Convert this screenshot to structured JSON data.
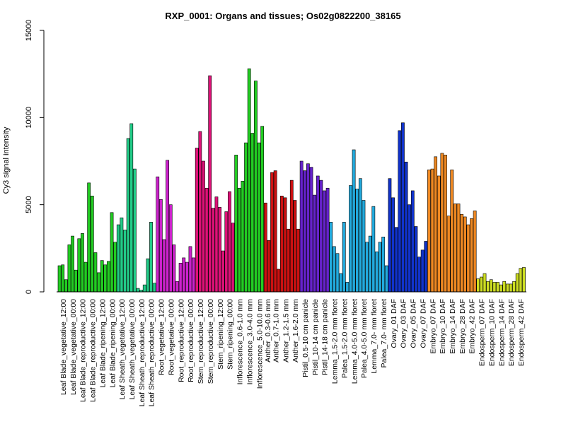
{
  "chart_data": {
    "type": "bar",
    "title": "RXP_0001: Organs and tissues; Os02g0822200_38165",
    "xlabel": "",
    "ylabel": "Cy3 signal intensity",
    "ylim": [
      0,
      15000
    ],
    "yticks": [
      0,
      5000,
      10000,
      15000
    ],
    "grid": false,
    "legend": "none",
    "groups": [
      {
        "label": "Leaf Blade_vegetative_12:00",
        "color": "#22cc22",
        "values": [
          1500,
          1550,
          700
        ]
      },
      {
        "label": "Leaf Blade_vegetative_00:00",
        "color": "#22cc22",
        "values": [
          2700,
          3200,
          1250
        ]
      },
      {
        "label": "Leaf Blade_reproductive_12:00",
        "color": "#22cc22",
        "values": [
          3050,
          3350,
          1700
        ]
      },
      {
        "label": "Leaf Blade_reproductive_00:00",
        "color": "#22cc22",
        "values": [
          6250,
          5500,
          2250
        ]
      },
      {
        "label": "Leaf Blade_ripening_12:00",
        "color": "#22cc22",
        "values": [
          1100,
          1800,
          1550
        ]
      },
      {
        "label": "Leaf Blade_ripening_00:00",
        "color": "#22cc22",
        "values": [
          1750,
          4550,
          2850
        ]
      },
      {
        "label": "Leaf Sheath_vegetative_12:00",
        "color": "#22cc88",
        "values": [
          3850,
          4250,
          3550
        ]
      },
      {
        "label": "Leaf Sheath_vegetative_00:00",
        "color": "#22cc88",
        "values": [
          8800,
          9650,
          7050
        ]
      },
      {
        "label": "Leaf Sheath_reproductive_12:00",
        "color": "#22cc88",
        "values": [
          200,
          100,
          400
        ]
      },
      {
        "label": "Leaf Sheath_reproductive_00:00",
        "color": "#22cc88",
        "values": [
          1900,
          4000,
          500
        ]
      },
      {
        "label": "Root_vegetative_12:00",
        "color": "#cc22cc",
        "values": [
          6600,
          5300,
          3000
        ]
      },
      {
        "label": "Root_vegetative_00:00",
        "color": "#cc22cc",
        "values": [
          7550,
          5000,
          2700
        ]
      },
      {
        "label": "Root_reproductive_12:00",
        "color": "#cc22cc",
        "values": [
          600,
          1650,
          1950
        ]
      },
      {
        "label": "Root_reproductive_00:00",
        "color": "#cc22cc",
        "values": [
          1700,
          2600,
          1950
        ]
      },
      {
        "label": "Stem_reproductive_12:00",
        "color": "#dd1177",
        "values": [
          8250,
          9200,
          7500
        ]
      },
      {
        "label": "Stem_reproductive_00:00",
        "color": "#dd1177",
        "values": [
          5950,
          12400,
          4800
        ]
      },
      {
        "label": "Stem_ripening_12:00",
        "color": "#dd1177",
        "values": [
          5450,
          4850,
          2350
        ]
      },
      {
        "label": "Stem_ripening_00:00",
        "color": "#dd1177",
        "values": [
          4600,
          5750,
          3950
        ]
      },
      {
        "label": "Inflorescence_0.6-1.0 mm",
        "color": "#22cc22",
        "values": [
          7850,
          5950,
          6350
        ]
      },
      {
        "label": "Inflorescence_3.0-4.0 mm",
        "color": "#22cc22",
        "values": [
          8550,
          12800,
          9100
        ]
      },
      {
        "label": "Inflorescence_5.0-10.0 mm",
        "color": "#22cc22",
        "values": [
          12100,
          8550,
          9500
        ]
      },
      {
        "label": "Anther_0.3-0.6 mm",
        "color": "#cc1111",
        "values": [
          5100,
          2950
        ]
      },
      {
        "label": "Anther_0.7-1.0 mm",
        "color": "#cc1111",
        "values": [
          6850,
          6950,
          1300
        ]
      },
      {
        "label": "Anther_1.2-1.5 mm",
        "color": "#cc1111",
        "values": [
          5500,
          5400,
          3600
        ]
      },
      {
        "label": "Anther_1.6-2.0 mm",
        "color": "#cc1111",
        "values": [
          6400,
          5250,
          3600
        ]
      },
      {
        "label": "Pistil_0.5-10 cm panicle",
        "color": "#6622cc",
        "values": [
          7500,
          6950,
          7350
        ]
      },
      {
        "label": "Pistil_10-14 cm panicle",
        "color": "#6622cc",
        "values": [
          7150,
          5550,
          6650
        ]
      },
      {
        "label": "Pistil_14-18 cm panicle",
        "color": "#6622cc",
        "values": [
          6400,
          5800,
          5950
        ]
      },
      {
        "label": "Lemma_1.5-2.0 mm floret",
        "color": "#22aadd",
        "values": [
          4000,
          2600,
          2200
        ]
      },
      {
        "label": "Palea_1.5-2.0 mm floret",
        "color": "#22aadd",
        "values": [
          1050,
          4000,
          550
        ]
      },
      {
        "label": "Lemma_4.0-5.0 mm floret",
        "color": "#22aadd",
        "values": [
          6100,
          8150,
          5900
        ]
      },
      {
        "label": "Palea_4.0-5.0 mm floret",
        "color": "#22aadd",
        "values": [
          6500,
          5250,
          2850
        ]
      },
      {
        "label": "Lemma_7.0- mm floret",
        "color": "#22aadd",
        "values": [
          3200,
          4900,
          2300
        ]
      },
      {
        "label": "Palea_7.0- mm floret",
        "color": "#22aadd",
        "values": [
          2850,
          3150,
          1500
        ]
      },
      {
        "label": "Ovary_01 DAF",
        "color": "#1133cc",
        "values": [
          6500,
          5400,
          3700
        ]
      },
      {
        "label": "Ovary_03 DAF",
        "color": "#1133cc",
        "values": [
          9250,
          9700,
          7450
        ]
      },
      {
        "label": "Ovary_05 DAF",
        "color": "#1133cc",
        "values": [
          5000,
          5800,
          3750
        ]
      },
      {
        "label": "Ovary_07 DAF",
        "color": "#1133cc",
        "values": [
          2000,
          2400,
          2900
        ]
      },
      {
        "label": "Embryo_07 DAF",
        "color": "#ee8822",
        "values": [
          7000,
          7050,
          7750
        ]
      },
      {
        "label": "Embryo_10 DAF",
        "color": "#ee8822",
        "values": [
          6650,
          7950,
          7850
        ]
      },
      {
        "label": "Embryo_14 DAF",
        "color": "#ee8822",
        "values": [
          4350,
          7000,
          5050
        ]
      },
      {
        "label": "Embryo_28 DAF",
        "color": "#ee8822",
        "values": [
          5050,
          4450,
          4300
        ]
      },
      {
        "label": "Embryo_42 DAF",
        "color": "#ee8822",
        "values": [
          3850,
          4200,
          4650
        ]
      },
      {
        "label": "Endosperm_07 DAF",
        "color": "#ccdd22",
        "values": [
          750,
          850,
          1050
        ]
      },
      {
        "label": "Endosperm_10 DAF",
        "color": "#ccdd22",
        "values": [
          600,
          700,
          550
        ]
      },
      {
        "label": "Endosperm_14 DAF",
        "color": "#ccdd22",
        "values": [
          550,
          400,
          600
        ]
      },
      {
        "label": "Endosperm_28 DAF",
        "color": "#ccdd22",
        "values": [
          450,
          450,
          600
        ]
      },
      {
        "label": "Endosperm_42 DAF",
        "color": "#ccdd22",
        "values": [
          1050,
          1350,
          1400
        ]
      }
    ]
  }
}
